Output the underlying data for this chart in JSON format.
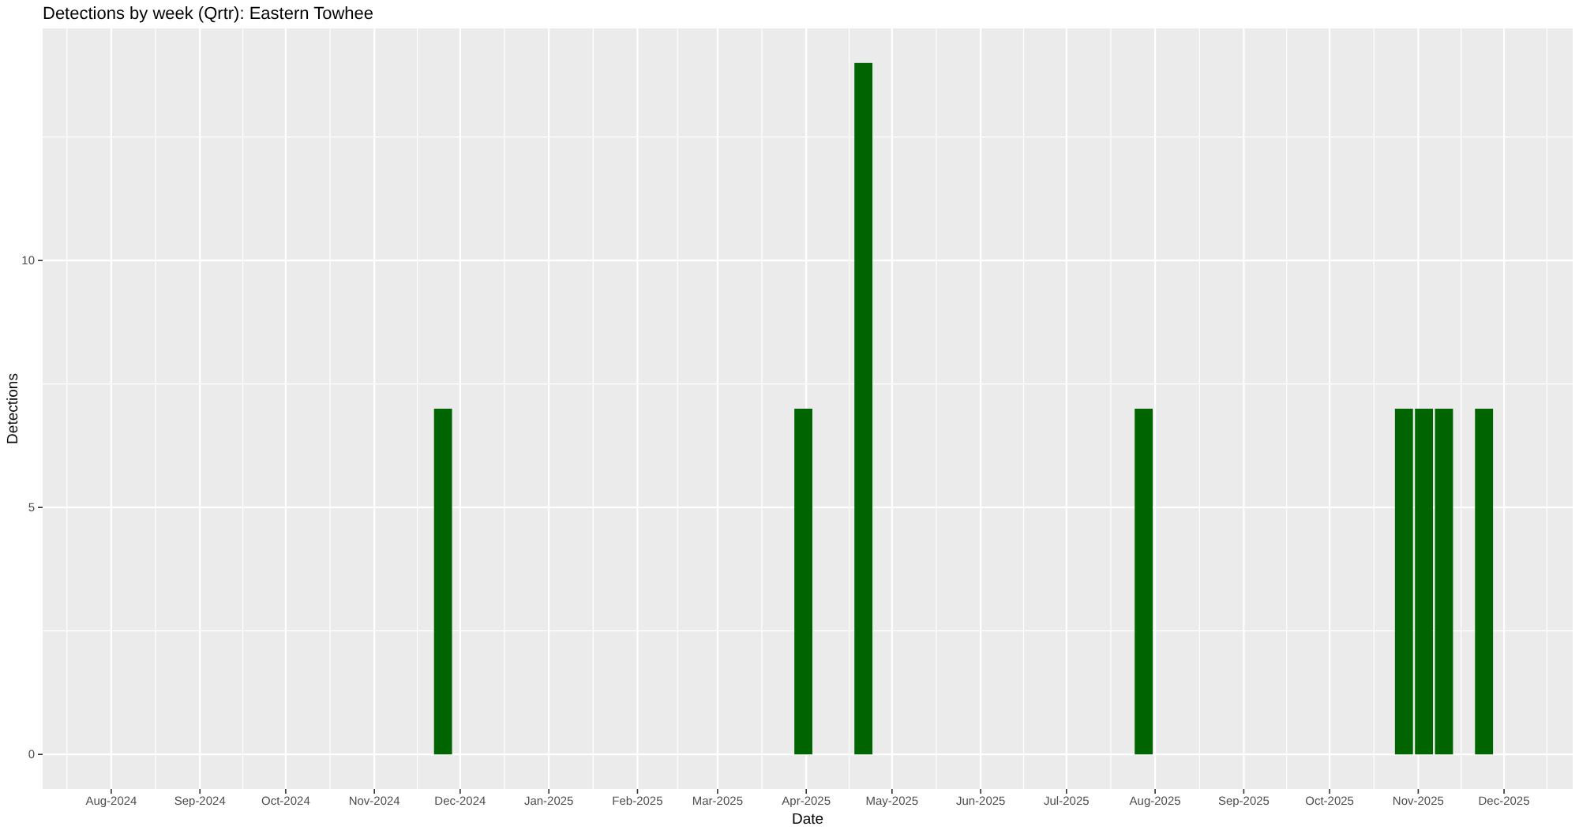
{
  "chart_data": {
    "type": "bar",
    "title": "Detections by week (Qrtr): Eastern Towhee",
    "xlabel": "Date",
    "ylabel": "Detections",
    "x": [
      "2024-11-25",
      "2025-03-31",
      "2025-04-21",
      "2025-07-28",
      "2025-10-27",
      "2025-11-03",
      "2025-11-10",
      "2025-11-24"
    ],
    "values": [
      7,
      7,
      14,
      7,
      7,
      7,
      7,
      7
    ],
    "color": "#006400",
    "xlim": [
      "2024-07-08",
      "2025-12-25"
    ],
    "xticks": [
      {
        "value": "2024-08-01",
        "label": "Aug-2024"
      },
      {
        "value": "2024-09-01",
        "label": "Sep-2024"
      },
      {
        "value": "2024-10-01",
        "label": "Oct-2024"
      },
      {
        "value": "2024-11-01",
        "label": "Nov-2024"
      },
      {
        "value": "2024-12-01",
        "label": "Dec-2024"
      },
      {
        "value": "2025-01-01",
        "label": "Jan-2025"
      },
      {
        "value": "2025-02-01",
        "label": "Feb-2025"
      },
      {
        "value": "2025-03-01",
        "label": "Mar-2025"
      },
      {
        "value": "2025-04-01",
        "label": "Apr-2025"
      },
      {
        "value": "2025-05-01",
        "label": "May-2025"
      },
      {
        "value": "2025-06-01",
        "label": "Jun-2025"
      },
      {
        "value": "2025-07-01",
        "label": "Jul-2025"
      },
      {
        "value": "2025-08-01",
        "label": "Aug-2025"
      },
      {
        "value": "2025-09-01",
        "label": "Sep-2025"
      },
      {
        "value": "2025-10-01",
        "label": "Oct-2025"
      },
      {
        "value": "2025-11-01",
        "label": "Nov-2025"
      },
      {
        "value": "2025-12-01",
        "label": "Dec-2025"
      }
    ],
    "ylim": [
      -0.7,
      14.7
    ],
    "yticks": [
      0,
      5,
      10
    ],
    "grid": true
  }
}
